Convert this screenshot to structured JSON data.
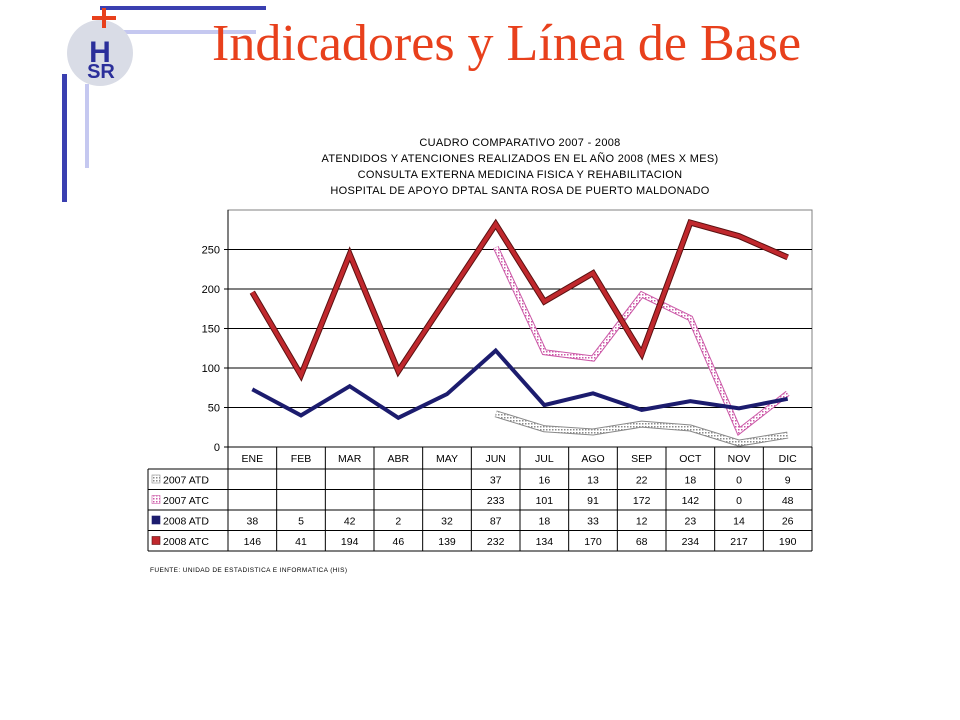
{
  "slide": {
    "title": "Indicadores y Línea de Base",
    "logo_text_top": "H",
    "logo_text_bottom": "SR",
    "source_note": "FUENTE: UNIDAD DE ESTADISTICA E INFORMATICA (HIS)"
  },
  "colors": {
    "title": "#e8401c",
    "deco_blue": "#3a3fb0",
    "deco_light": "#c5c8f0",
    "atd2008": "#1c1c6e",
    "atc2008": "#c0282d",
    "atc2007": "#e6a3d6",
    "atd2007": "#c8c8c8"
  },
  "chart_data": {
    "type": "line",
    "title_lines": [
      "CUADRO COMPARATIVO 2007 - 2008",
      "ATENDIDOS Y ATENCIONES REALIZADOS EN EL AÑO 2008 (MES X MES)",
      "CONSULTA EXTERNA MEDICINA FISICA Y REHABILITACION",
      "HOSPITAL DE APOYO DPTAL SANTA ROSA DE PUERTO MALDONADO"
    ],
    "categories": [
      "ENE",
      "FEB",
      "MAR",
      "ABR",
      "MAY",
      "JUN",
      "JUL",
      "AGO",
      "SEP",
      "OCT",
      "NOV",
      "DIC"
    ],
    "y_ticks": [
      0,
      50,
      100,
      150,
      200,
      250
    ],
    "ylim": [
      0,
      300
    ],
    "grid": true,
    "legend_placement": "table-below",
    "series": [
      {
        "name": "2007 ATD",
        "values": [
          null,
          null,
          null,
          null,
          null,
          37,
          16,
          13,
          22,
          18,
          0,
          9
        ],
        "plotted": [
          null,
          null,
          null,
          null,
          null,
          42,
          23,
          19,
          29,
          24,
          5,
          15
        ]
      },
      {
        "name": "2007 ATC",
        "values": [
          null,
          null,
          null,
          null,
          null,
          233,
          101,
          91,
          172,
          142,
          0,
          48
        ],
        "plotted": [
          null,
          null,
          null,
          null,
          null,
          253,
          120,
          112,
          193,
          163,
          20,
          68
        ]
      },
      {
        "name": "2008 ATD",
        "values": [
          38,
          5,
          42,
          2,
          32,
          87,
          18,
          33,
          12,
          23,
          14,
          26
        ],
        "plotted": [
          73,
          40,
          77,
          37,
          67,
          122,
          53,
          68,
          47,
          58,
          49,
          61
        ]
      },
      {
        "name": "2008 ATC",
        "values": [
          146,
          41,
          194,
          46,
          139,
          232,
          134,
          170,
          68,
          234,
          217,
          190
        ],
        "plotted": [
          196,
          91,
          244,
          96,
          189,
          282,
          184,
          220,
          118,
          284,
          267,
          240
        ]
      }
    ]
  }
}
